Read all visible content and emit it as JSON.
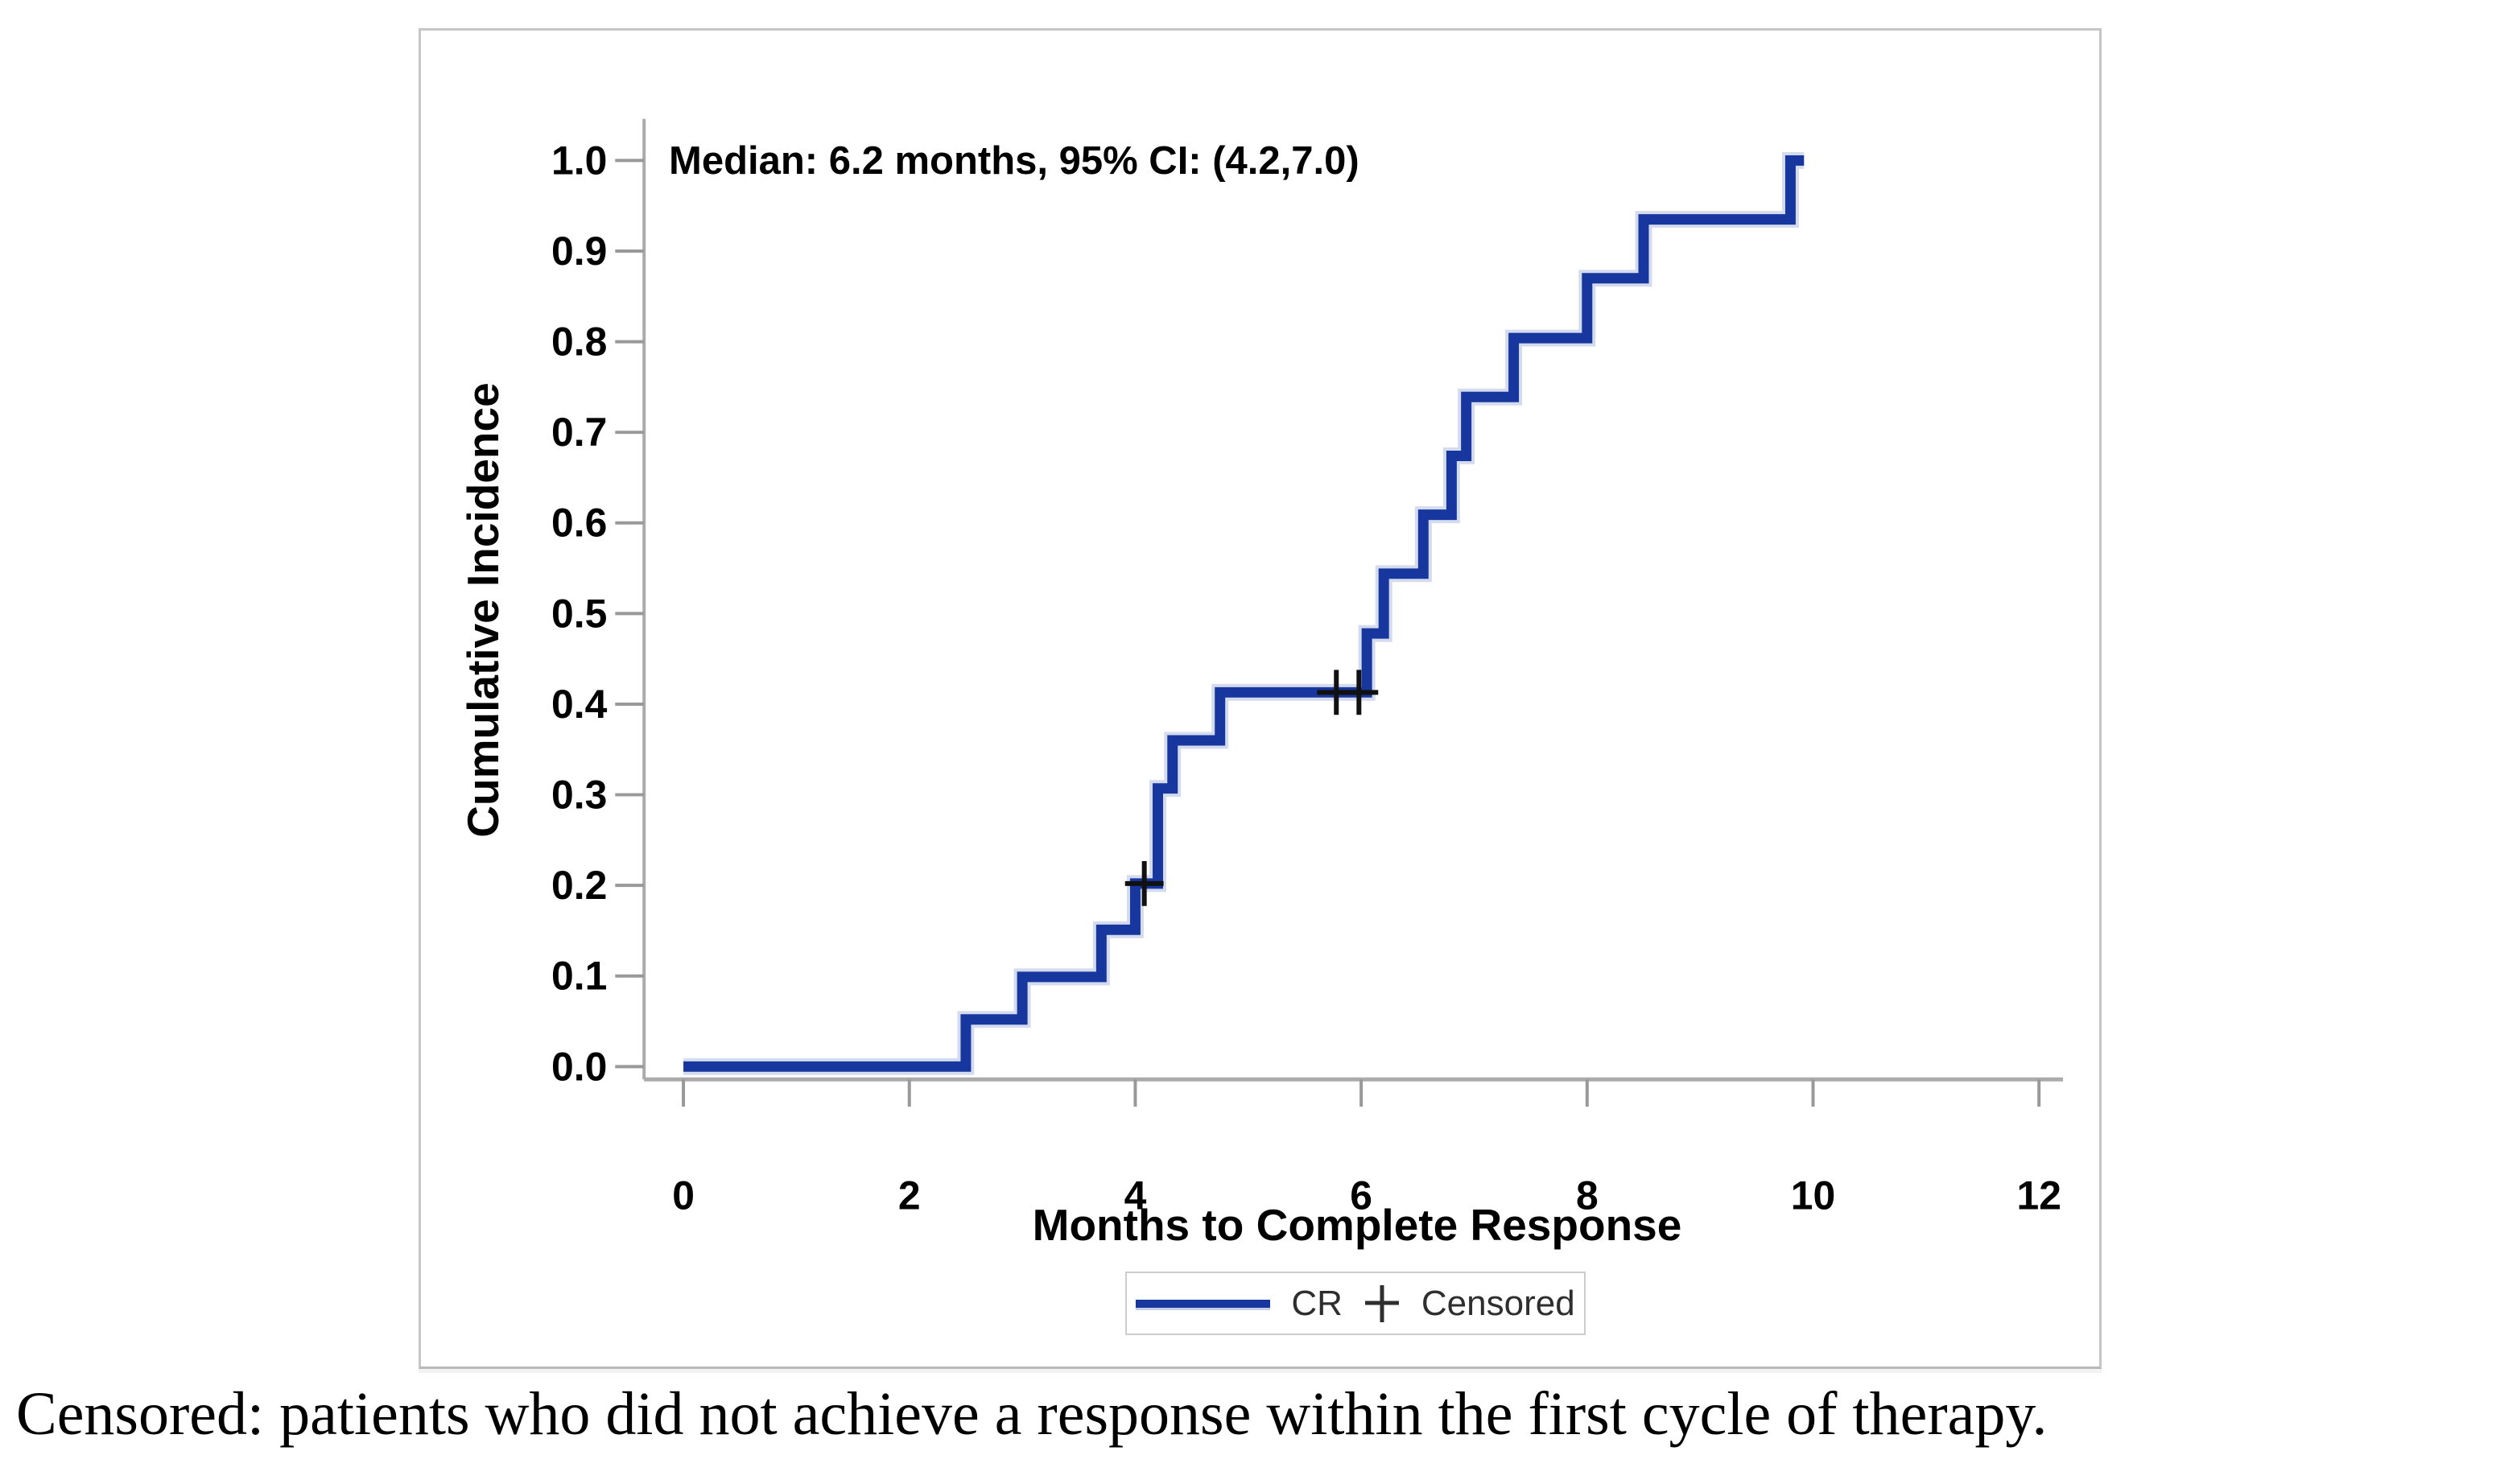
{
  "figure": {
    "median_annotation": "Median: 6.2 months, 95% CI: (4.2,7.0)",
    "x_axis_title": "Months to Complete Response",
    "y_axis_title": "Cumulative Incidence",
    "caption": "Censored: patients who did not achieve a response within the first cycle of therapy.",
    "legend": {
      "cr_label": "CR",
      "censored_label": "Censored"
    },
    "colors": {
      "curve": "#17379e",
      "curve_halo": "#9fb0dc",
      "axis_line": "#ababab",
      "tick_mark": "#999999",
      "tick_label": "#000000",
      "censor_mark": "#111111",
      "figure_border": "#c6c6c6",
      "legend_border": "#cccccc",
      "legend_text": "#2e2e2e"
    }
  },
  "chart_data": {
    "type": "line",
    "subtype": "step-cumulative-incidence",
    "title": "",
    "xlabel": "Months to Complete Response",
    "ylabel": "Cumulative Incidence",
    "xlim": [
      0,
      12.4
    ],
    "ylim": [
      0.0,
      1.0
    ],
    "x_ticks": [
      0,
      2,
      4,
      6,
      8,
      10,
      12
    ],
    "y_ticks": [
      0.0,
      0.1,
      0.2,
      0.3,
      0.4,
      0.5,
      0.6,
      0.7,
      0.8,
      0.9,
      1.0
    ],
    "grid": false,
    "legend_position": "bottom-center",
    "annotation": {
      "text": "Median: 6.2 months, 95% CI: (4.2,7.0)",
      "median_months": 6.2,
      "ci_lower": 4.2,
      "ci_upper": 7.0
    },
    "series": [
      {
        "name": "CR",
        "start": [
          0.0,
          0.0
        ],
        "events": [
          [
            2.5,
            0.052
          ],
          [
            3.0,
            0.099
          ],
          [
            3.7,
            0.151
          ],
          [
            4.0,
            0.202
          ],
          [
            4.2,
            0.307
          ],
          [
            4.33,
            0.36
          ],
          [
            4.75,
            0.413
          ],
          [
            6.05,
            0.478
          ],
          [
            6.2,
            0.544
          ],
          [
            6.55,
            0.609
          ],
          [
            6.8,
            0.674
          ],
          [
            6.93,
            0.739
          ],
          [
            7.35,
            0.804
          ],
          [
            8.0,
            0.87
          ],
          [
            8.5,
            0.935
          ],
          [
            9.8,
            1.0
          ]
        ],
        "end": [
          9.92,
          1.0
        ]
      }
    ],
    "censored": [
      [
        4.08,
        0.202
      ],
      [
        5.78,
        0.413
      ],
      [
        5.98,
        0.413
      ]
    ]
  }
}
